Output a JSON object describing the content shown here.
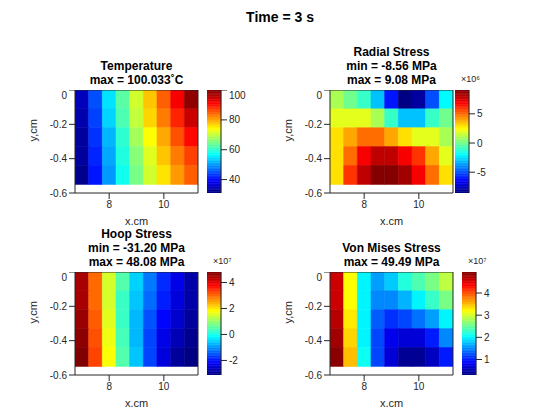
{
  "title": "Time = 3 s",
  "chart_data": [
    {
      "type": "heatmap",
      "title": [
        "Temperature",
        "max  =  100.033˚C"
      ],
      "x_label": "x,cm",
      "y_label": "y,cm",
      "xlim": [
        6.75,
        11.25
      ],
      "xticks": [
        8,
        10
      ],
      "ylim": [
        -0.6,
        0
      ],
      "yticks": [
        -0.6,
        -0.4,
        -0.2,
        0
      ],
      "cells": {
        "x": [
          7,
          7.5,
          8,
          8.5,
          9,
          9.5,
          10,
          10.5,
          11
        ],
        "y": [
          -0.055,
          -0.165,
          -0.275,
          -0.385,
          -0.495
        ],
        "z": [
          [
            35,
            45,
            55,
            63,
            71,
            78,
            85,
            92,
            99
          ],
          [
            34,
            44,
            54,
            62,
            70,
            77,
            83,
            89,
            95
          ],
          [
            33,
            43,
            52,
            60,
            68,
            74,
            80,
            86,
            91
          ],
          [
            33,
            42,
            51,
            59,
            66,
            72,
            78,
            83,
            87
          ],
          [
            32,
            41,
            50,
            58,
            65,
            71,
            76,
            81,
            85
          ]
        ]
      },
      "colorbar": {
        "range": [
          31,
          100.033
        ],
        "ticks": [
          40,
          60,
          80,
          100
        ]
      }
    },
    {
      "type": "heatmap",
      "title": [
        "Radial Stress",
        "min = -8.56 MPa",
        "max = 9.08 MPa"
      ],
      "x_label": "x,cm",
      "y_label": "y,cm",
      "xlim": [
        6.75,
        11.25
      ],
      "xticks": [
        8,
        10
      ],
      "ylim": [
        -0.6,
        0
      ],
      "yticks": [
        -0.6,
        -0.4,
        -0.2,
        0
      ],
      "cells": {
        "x": [
          7,
          7.5,
          8,
          8.5,
          9,
          9.5,
          10,
          10.5,
          11
        ],
        "y": [
          -0.055,
          -0.165,
          -0.275,
          -0.385,
          -0.495
        ],
        "z": [
          [
            1000000.0,
            0,
            -1000000.0,
            -3000000.0,
            -6000000.0,
            -8500000.0,
            -8000000.0,
            -5000000.0,
            -2000000.0
          ],
          [
            2000000.0,
            2000000.0,
            2000000.0,
            1000000.0,
            -1000000.0,
            -3000000.0,
            -3000000.0,
            -1000000.0,
            0
          ],
          [
            3000000.0,
            4000000.0,
            5000000.0,
            5000000.0,
            4000000.0,
            3000000.0,
            2000000.0,
            2000000.0,
            1000000.0
          ],
          [
            3000000.0,
            5000000.0,
            7000000.0,
            8000000.0,
            8000000.0,
            7000000.0,
            6000000.0,
            4000000.0,
            2000000.0
          ],
          [
            3000000.0,
            6000000.0,
            8000000.0,
            9000000.0,
            9000000.0,
            8500000.0,
            7000000.0,
            5000000.0,
            3000000.0
          ]
        ]
      },
      "colorbar": {
        "range": [
          -8560000.0,
          9080000.0
        ],
        "ticks": [
          {
            "value": -5000000.0,
            "label": "-5"
          },
          {
            "value": 0,
            "label": "0"
          },
          {
            "value": 5000000.0,
            "label": "5"
          }
        ],
        "scale_label": "×10⁶"
      }
    },
    {
      "type": "heatmap",
      "title": [
        "Hoop Stress",
        "min = -31.20 MPa",
        "max = 48.08 MPa"
      ],
      "x_label": "x,cm",
      "y_label": "y,cm",
      "xlim": [
        6.75,
        11.25
      ],
      "xticks": [
        8,
        10
      ],
      "ylim": [
        -0.6,
        0
      ],
      "yticks": [
        -0.6,
        -0.4,
        -0.2,
        0
      ],
      "cells": {
        "x": [
          7,
          7.5,
          8,
          8.5,
          9,
          9.5,
          10,
          10.5,
          11
        ],
        "y": [
          -0.055,
          -0.165,
          -0.275,
          -0.385,
          -0.495
        ],
        "z": [
          [
            45000000.0,
            30000000.0,
            15000000.0,
            5000000.0,
            -5000000.0,
            -12000000.0,
            -18000000.0,
            -23000000.0,
            -28000000.0
          ],
          [
            45000000.0,
            30000000.0,
            15000000.0,
            3000000.0,
            -6000000.0,
            -13000000.0,
            -19000000.0,
            -24000000.0,
            -28000000.0
          ],
          [
            46000000.0,
            31000000.0,
            16000000.0,
            3000000.0,
            -7000000.0,
            -15000000.0,
            -21000000.0,
            -25000000.0,
            -29000000.0
          ],
          [
            47000000.0,
            32000000.0,
            17000000.0,
            4000000.0,
            -7000000.0,
            -16000000.0,
            -23000000.0,
            -27000000.0,
            -30000000.0
          ],
          [
            48000000.0,
            33000000.0,
            18000000.0,
            5000000.0,
            -6000000.0,
            -16000000.0,
            -24000000.0,
            -29000000.0,
            -31000000.0
          ]
        ]
      },
      "colorbar": {
        "range": [
          -31200000.0,
          48080000.0
        ],
        "ticks": [
          {
            "value": -20000000.0,
            "label": "-2"
          },
          {
            "value": 0,
            "label": "0"
          },
          {
            "value": 20000000.0,
            "label": "2"
          },
          {
            "value": 40000000.0,
            "label": "4"
          }
        ],
        "scale_label": "×10⁷"
      }
    },
    {
      "type": "heatmap",
      "title": [
        "Von Mises Stress",
        "max = 49.49 MPa"
      ],
      "x_label": "x,cm",
      "y_label": "y,cm",
      "xlim": [
        6.75,
        11.25
      ],
      "xticks": [
        8,
        10
      ],
      "ylim": [
        -0.6,
        0
      ],
      "yticks": [
        -0.6,
        -0.4,
        -0.2,
        0
      ],
      "cells": {
        "x": [
          7,
          7.5,
          8,
          8.5,
          9,
          9.5,
          10,
          10.5,
          11
        ],
        "y": [
          -0.055,
          -0.165,
          -0.275,
          -0.385,
          -0.495
        ],
        "z": [
          [
            46000000.0,
            32000000.0,
            20000000.0,
            16000000.0,
            18000000.0,
            22000000.0,
            24000000.0,
            26000000.0,
            29000000.0
          ],
          [
            46000000.0,
            32000000.0,
            20000000.0,
            15000000.0,
            15000000.0,
            17000000.0,
            20000000.0,
            23000000.0,
            26000000.0
          ],
          [
            47000000.0,
            33000000.0,
            20000000.0,
            13000000.0,
            11000000.0,
            12000000.0,
            14000000.0,
            16000000.0,
            20000000.0
          ],
          [
            48000000.0,
            34000000.0,
            20000000.0,
            12000000.0,
            8000000.0,
            7000000.0,
            7000000.0,
            10000000.0,
            15000000.0
          ],
          [
            49000000.0,
            35000000.0,
            21000000.0,
            12000000.0,
            7000000.0,
            4000000.0,
            4000000.0,
            6000000.0,
            10000000.0
          ]
        ]
      },
      "colorbar": {
        "range": [
          3000000.0,
          49490000.0
        ],
        "ticks": [
          {
            "value": 10000000.0,
            "label": "1"
          },
          {
            "value": 20000000.0,
            "label": "2"
          },
          {
            "value": 30000000.0,
            "label": "3"
          },
          {
            "value": 40000000.0,
            "label": "4"
          }
        ],
        "scale_label": "×10⁷"
      }
    }
  ]
}
